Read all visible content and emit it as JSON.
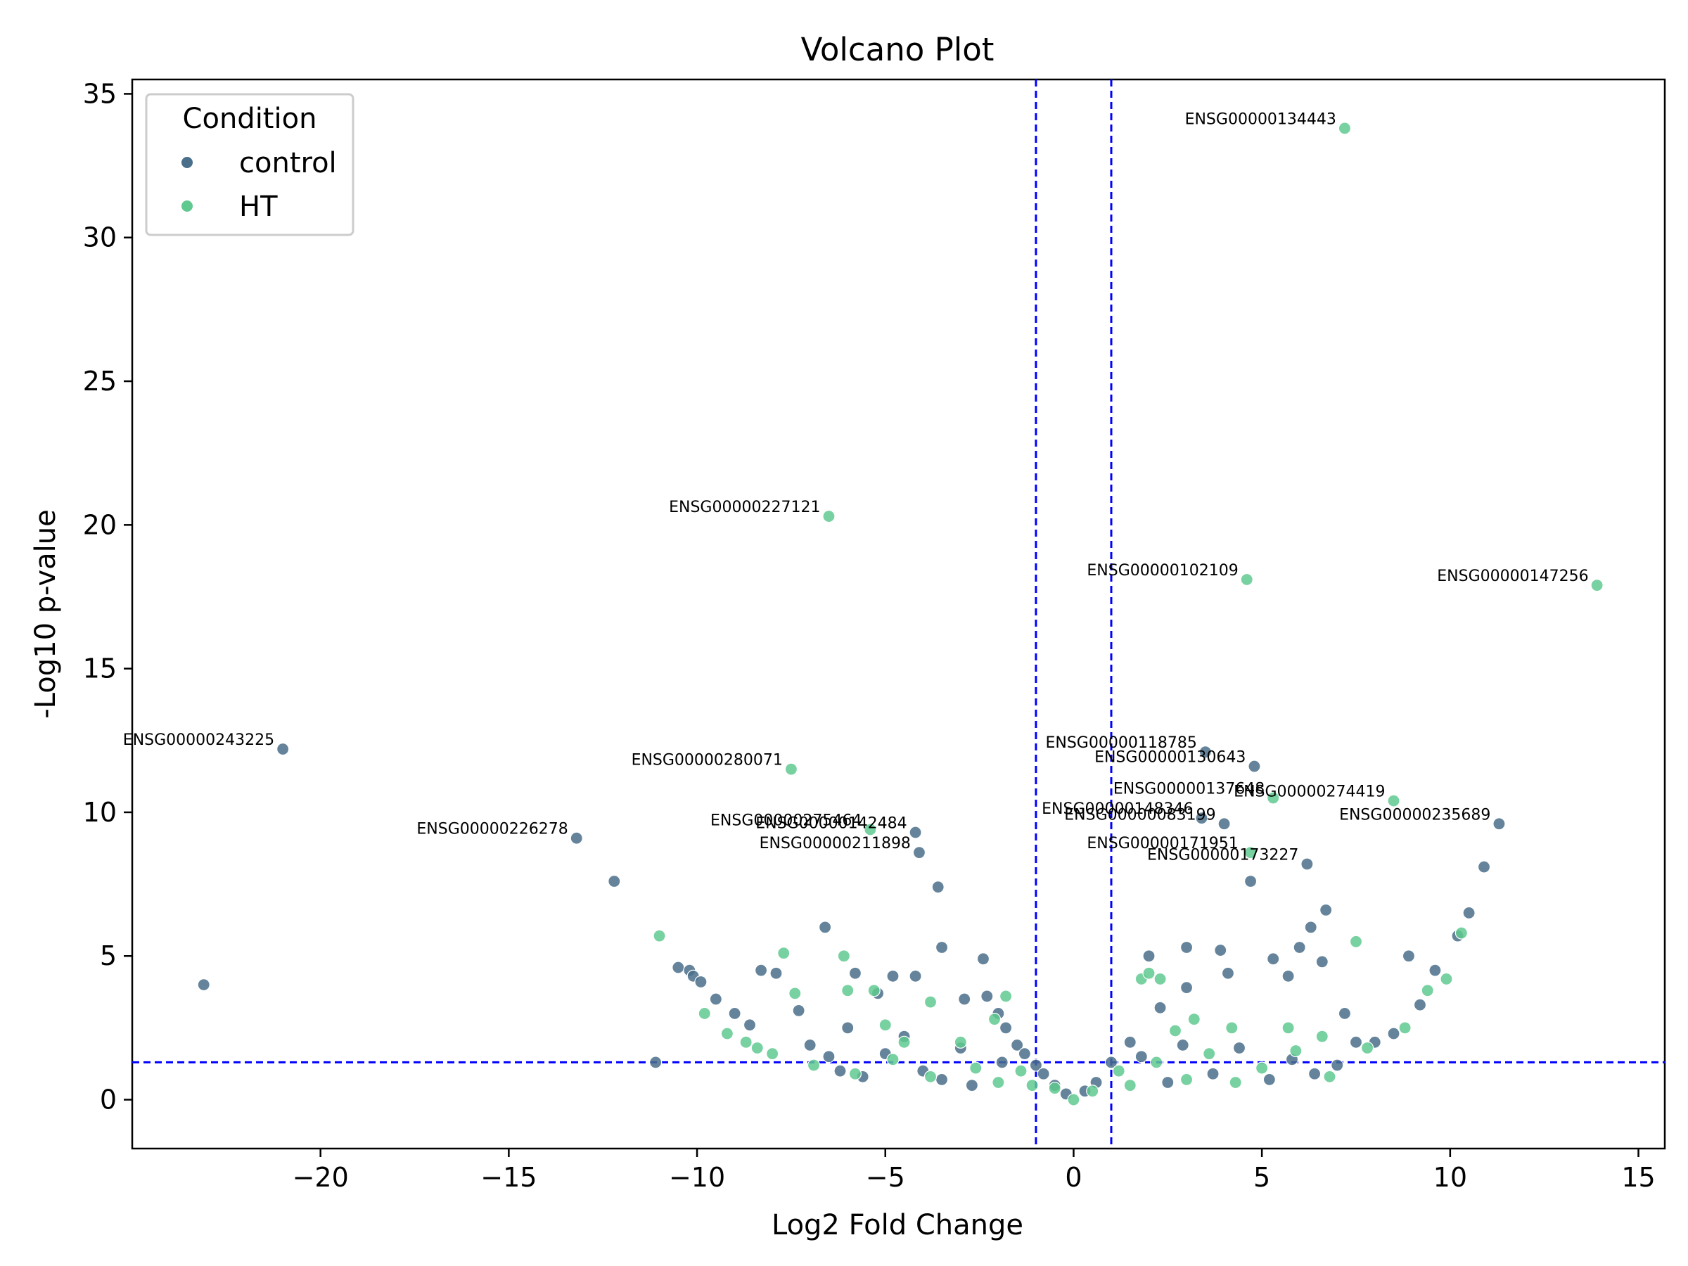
{
  "chart_data": {
    "type": "scatter",
    "title": "Volcano Plot",
    "xlabel": "Log2 Fold Change",
    "ylabel": "-Log10 p-value",
    "xlim": [
      -25,
      15.7
    ],
    "ylim": [
      -1.7,
      35.5
    ],
    "x_ticks": [
      -20,
      -15,
      -10,
      -5,
      0,
      5,
      10,
      15
    ],
    "y_ticks": [
      0,
      5,
      10,
      15,
      20,
      25,
      30,
      35
    ],
    "x_tick_labels": [
      "−20",
      "−15",
      "−10",
      "−5",
      "0",
      "5",
      "10",
      "15"
    ],
    "y_tick_labels": [
      "0",
      "5",
      "10",
      "15",
      "20",
      "25",
      "30",
      "35"
    ],
    "grid": false,
    "legend": {
      "title": "Condition",
      "placement": "top-left"
    },
    "thresholds": {
      "fold_change": [
        -1,
        1
      ],
      "neg_log10_p": 1.3,
      "line_color": "#0000ff",
      "line_style": "dashed"
    },
    "series": [
      {
        "name": "control",
        "color": "#4a6f8a",
        "points": [
          [
            -23.1,
            4.0
          ],
          [
            -21.0,
            12.2
          ],
          [
            -13.2,
            9.1
          ],
          [
            -12.2,
            7.6
          ],
          [
            -11.1,
            1.3
          ],
          [
            -10.5,
            4.6
          ],
          [
            -10.2,
            4.5
          ],
          [
            -10.1,
            4.3
          ],
          [
            -9.9,
            4.1
          ],
          [
            -9.5,
            3.5
          ],
          [
            -9.0,
            3.0
          ],
          [
            -8.6,
            2.6
          ],
          [
            -8.3,
            4.5
          ],
          [
            -7.9,
            4.4
          ],
          [
            -7.3,
            3.1
          ],
          [
            -6.6,
            6.0
          ],
          [
            -6.0,
            2.5
          ],
          [
            -5.8,
            4.4
          ],
          [
            -5.2,
            3.7
          ],
          [
            -4.8,
            4.3
          ],
          [
            -4.2,
            4.3
          ],
          [
            -4.2,
            9.3
          ],
          [
            -4.1,
            8.6
          ],
          [
            -3.6,
            7.4
          ],
          [
            -3.5,
            5.3
          ],
          [
            -2.9,
            3.5
          ],
          [
            -2.4,
            4.9
          ],
          [
            -2.3,
            3.6
          ],
          [
            -2.0,
            3.0
          ],
          [
            -1.8,
            2.5
          ],
          [
            -1.5,
            1.9
          ],
          [
            -1.3,
            1.6
          ],
          [
            -1.0,
            1.2
          ],
          [
            -0.8,
            0.9
          ],
          [
            -0.5,
            0.5
          ],
          [
            -0.2,
            0.2
          ],
          [
            0.3,
            0.3
          ],
          [
            0.6,
            0.6
          ],
          [
            1.0,
            1.3
          ],
          [
            1.5,
            2.0
          ],
          [
            2.0,
            5.0
          ],
          [
            2.3,
            3.2
          ],
          [
            3.0,
            5.3
          ],
          [
            3.0,
            3.9
          ],
          [
            3.4,
            9.8
          ],
          [
            3.5,
            12.1
          ],
          [
            3.9,
            5.2
          ],
          [
            4.0,
            9.6
          ],
          [
            4.1,
            4.4
          ],
          [
            4.7,
            7.6
          ],
          [
            4.8,
            11.6
          ],
          [
            5.3,
            4.9
          ],
          [
            5.7,
            4.3
          ],
          [
            6.0,
            5.3
          ],
          [
            6.2,
            8.2
          ],
          [
            6.3,
            6.0
          ],
          [
            6.6,
            4.8
          ],
          [
            6.7,
            6.6
          ],
          [
            7.2,
            3.0
          ],
          [
            7.5,
            2.0
          ],
          [
            8.0,
            2.0
          ],
          [
            8.5,
            2.3
          ],
          [
            8.9,
            5.0
          ],
          [
            9.2,
            3.3
          ],
          [
            9.6,
            4.5
          ],
          [
            10.2,
            5.7
          ],
          [
            10.5,
            6.5
          ],
          [
            10.9,
            8.1
          ],
          [
            11.3,
            9.6
          ],
          [
            -7.0,
            1.9
          ],
          [
            -6.5,
            1.5
          ],
          [
            -6.2,
            1.0
          ],
          [
            -5.6,
            0.8
          ],
          [
            -5.0,
            1.6
          ],
          [
            -4.5,
            2.2
          ],
          [
            -4.0,
            1.0
          ],
          [
            -3.5,
            0.7
          ],
          [
            -3.0,
            1.8
          ],
          [
            -2.7,
            0.5
          ],
          [
            -1.9,
            1.3
          ],
          [
            1.8,
            1.5
          ],
          [
            2.5,
            0.6
          ],
          [
            2.9,
            1.9
          ],
          [
            3.7,
            0.9
          ],
          [
            4.4,
            1.8
          ],
          [
            5.2,
            0.7
          ],
          [
            5.8,
            1.4
          ],
          [
            6.4,
            0.9
          ],
          [
            7.0,
            1.2
          ]
        ]
      },
      {
        "name": "HT",
        "color": "#5fc98f",
        "points": [
          [
            -11.0,
            5.7
          ],
          [
            -9.8,
            3.0
          ],
          [
            -8.7,
            2.0
          ],
          [
            -8.0,
            1.6
          ],
          [
            -7.7,
            5.1
          ],
          [
            -7.5,
            11.5
          ],
          [
            -7.4,
            3.7
          ],
          [
            -6.5,
            20.3
          ],
          [
            -6.1,
            5.0
          ],
          [
            -6.0,
            3.8
          ],
          [
            -5.4,
            9.4
          ],
          [
            -5.3,
            3.8
          ],
          [
            -5.0,
            2.6
          ],
          [
            -4.5,
            2.0
          ],
          [
            -3.8,
            3.4
          ],
          [
            -3.0,
            2.0
          ],
          [
            -2.1,
            2.8
          ],
          [
            -1.8,
            3.6
          ],
          [
            -1.4,
            1.0
          ],
          [
            -1.1,
            0.5
          ],
          [
            -0.5,
            0.4
          ],
          [
            0.0,
            0.0
          ],
          [
            0.5,
            0.3
          ],
          [
            1.2,
            1.0
          ],
          [
            1.8,
            4.2
          ],
          [
            2.0,
            4.4
          ],
          [
            2.3,
            4.2
          ],
          [
            2.7,
            2.4
          ],
          [
            3.2,
            2.8
          ],
          [
            4.2,
            2.5
          ],
          [
            4.6,
            18.1
          ],
          [
            4.7,
            8.6
          ],
          [
            5.3,
            10.5
          ],
          [
            5.7,
            2.5
          ],
          [
            6.6,
            2.2
          ],
          [
            7.2,
            33.8
          ],
          [
            7.5,
            5.5
          ],
          [
            8.5,
            10.4
          ],
          [
            9.4,
            3.8
          ],
          [
            10.3,
            5.8
          ],
          [
            13.9,
            17.9
          ],
          [
            -9.2,
            2.3
          ],
          [
            -8.4,
            1.8
          ],
          [
            -6.9,
            1.2
          ],
          [
            -5.8,
            0.9
          ],
          [
            -4.8,
            1.4
          ],
          [
            -3.8,
            0.8
          ],
          [
            -2.6,
            1.1
          ],
          [
            -2.0,
            0.6
          ],
          [
            1.5,
            0.5
          ],
          [
            2.2,
            1.3
          ],
          [
            3.0,
            0.7
          ],
          [
            3.6,
            1.6
          ],
          [
            4.3,
            0.6
          ],
          [
            5.0,
            1.1
          ],
          [
            5.9,
            1.7
          ],
          [
            6.8,
            0.8
          ],
          [
            7.8,
            1.8
          ],
          [
            8.8,
            2.5
          ],
          [
            9.9,
            4.2
          ]
        ]
      }
    ],
    "annotations": [
      {
        "text": "ENSG00000134443",
        "x": 7.2,
        "y": 33.8
      },
      {
        "text": "ENSG00000227121",
        "x": -6.5,
        "y": 20.3
      },
      {
        "text": "ENSG00000102109",
        "x": 4.6,
        "y": 18.1
      },
      {
        "text": "ENSG00000147256",
        "x": 13.9,
        "y": 17.9
      },
      {
        "text": "ENSG00000243225",
        "x": -21.0,
        "y": 12.2
      },
      {
        "text": "ENSG00000280071",
        "x": -7.5,
        "y": 11.5
      },
      {
        "text": "ENSG00000118785",
        "x": 3.5,
        "y": 12.1
      },
      {
        "text": "ENSG00000130643",
        "x": 4.8,
        "y": 11.6
      },
      {
        "text": "ENSG00000137648",
        "x": 5.3,
        "y": 10.5
      },
      {
        "text": "ENSG00000274419",
        "x": 8.5,
        "y": 10.4
      },
      {
        "text": "ENSG00000148346",
        "x": 3.4,
        "y": 9.8
      },
      {
        "text": "ENSG00000083199",
        "x": 4.0,
        "y": 9.6
      },
      {
        "text": "ENSG00000235689",
        "x": 11.3,
        "y": 9.6
      },
      {
        "text": "ENSG00000226278",
        "x": -13.2,
        "y": 9.1
      },
      {
        "text": "ENSG00000275464",
        "x": -5.4,
        "y": 9.4
      },
      {
        "text": "ENSG00000142484",
        "x": -4.2,
        "y": 9.3
      },
      {
        "text": "ENSG00000211898",
        "x": -4.1,
        "y": 8.6
      },
      {
        "text": "ENSG00000171951",
        "x": 4.6,
        "y": 8.6
      },
      {
        "text": "ENSG00000173227",
        "x": 6.2,
        "y": 8.2
      }
    ]
  }
}
